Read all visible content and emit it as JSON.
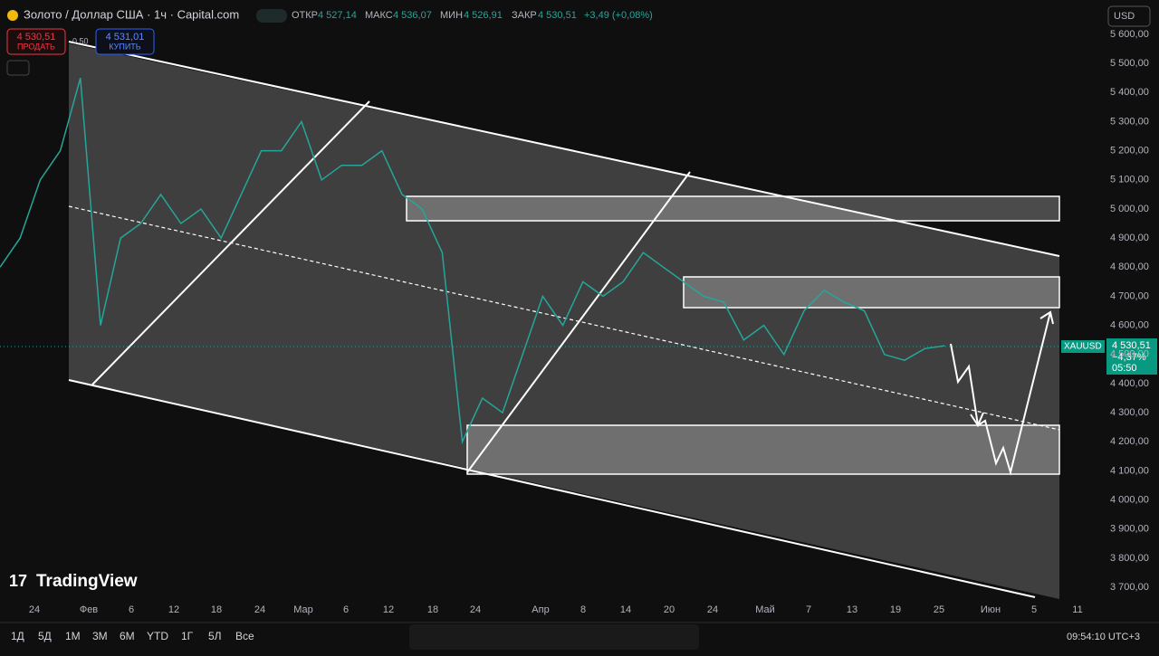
{
  "header": {
    "symbol": "Золото / Доллар США · 1ч · Capital.com",
    "open_label": "ОТКР",
    "open": "4 527,14",
    "high_label": "МАКС",
    "high": "4 536,07",
    "low_label": "МИН",
    "low": "4 526,91",
    "close_label": "ЗАКР",
    "close": "4 530,51",
    "change": "+3,49 (+0,08%)",
    "currency": "USD"
  },
  "trade": {
    "sell_price": "4 530,51",
    "sell_label": "ПРОДАТЬ",
    "spread": "0,50",
    "buy_price": "4 531,01",
    "buy_label": "КУПИТЬ"
  },
  "price_axis": [
    "5 600,00",
    "5 500,00",
    "5 400,00",
    "5 300,00",
    "5 200,00",
    "5 100,00",
    "5 000,00",
    "4 900,00",
    "4 800,00",
    "4 700,00",
    "4 600,00",
    "4 500,00",
    "4 400,00",
    "4 300,00",
    "4 200,00",
    "4 100,00",
    "4 000,00",
    "3 900,00",
    "3 800,00",
    "3 700,00"
  ],
  "price_tag": {
    "symbol": "XAUUSD",
    "price": "4 530,51",
    "change": "−4,37%",
    "countdown": "05:50"
  },
  "time_axis": [
    "24",
    "Фев",
    "6",
    "12",
    "18",
    "24",
    "Мар",
    "6",
    "12",
    "18",
    "24",
    "Апр",
    "8",
    "14",
    "20",
    "24",
    "Май",
    "7",
    "13",
    "19",
    "25",
    "Июн",
    "5",
    "11"
  ],
  "price_path": [
    4800,
    4900,
    5100,
    5200,
    5450,
    4600,
    4900,
    4950,
    5050,
    4950,
    5000,
    4900,
    5050,
    5200,
    5200,
    5300,
    5100,
    5150,
    5150,
    5200,
    5050,
    5000,
    4850,
    4200,
    4350,
    4300,
    4500,
    4700,
    4600,
    4750,
    4700,
    4750,
    4850,
    4800,
    4750,
    4700,
    4680,
    4550,
    4600,
    4500,
    4650,
    4720,
    4680,
    4650,
    4500,
    4480,
    4520,
    4530
  ],
  "toolbar": {
    "ranges": [
      "1Д",
      "5Д",
      "1М",
      "3М",
      "6М",
      "YTD",
      "1Г",
      "5Л",
      "Все"
    ],
    "clock": "09:54:10 UTC+3"
  },
  "logo": "TradingView"
}
